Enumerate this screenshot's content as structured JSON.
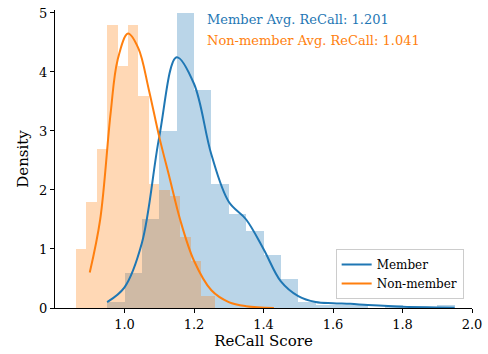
{
  "chart_data": {
    "type": "histogram",
    "x_label": "ReCall Score",
    "y_label": "Density",
    "xlim": [
      0.8,
      2.0
    ],
    "ylim": [
      0,
      5.05
    ],
    "xticks": [
      {
        "value": 1.0,
        "label": "1.0"
      },
      {
        "value": 1.2,
        "label": "1.2"
      },
      {
        "value": 1.4,
        "label": "1.4"
      },
      {
        "value": 1.6,
        "label": "1.6"
      },
      {
        "value": 1.8,
        "label": "1.8"
      },
      {
        "value": 2.0,
        "label": "2.0"
      }
    ],
    "yticks": [
      0,
      1,
      2,
      3,
      4,
      5
    ],
    "grid": false,
    "legend": "lower right",
    "annotations": [
      {
        "text": "Member Avg. ReCall: 1.201",
        "color": "#1f77b4"
      },
      {
        "text": "Non-member Avg. ReCall: 1.041",
        "color": "#ff7f0e"
      }
    ],
    "series": [
      {
        "name": "Member",
        "color": "#1f77b4",
        "type": "line",
        "bins": [
          0.95,
          1.0,
          1.05,
          1.1,
          1.15,
          1.2,
          1.25,
          1.3,
          1.35,
          1.4,
          1.45,
          1.5,
          1.55,
          1.6,
          1.65,
          1.7,
          1.75,
          1.8,
          1.85,
          1.9,
          1.95
        ],
        "counts": [
          0.1,
          0.6,
          1.5,
          3.0,
          5.0,
          3.7,
          2.1,
          1.6,
          1.3,
          0.9,
          0.5,
          0.1,
          0.05,
          0.05,
          0.05,
          0,
          0.05,
          0,
          0,
          0.05
        ],
        "x": [
          0.95,
          1.0,
          1.05,
          1.1,
          1.15,
          1.2,
          1.25,
          1.3,
          1.35,
          1.4,
          1.45,
          1.5,
          1.55,
          1.6,
          1.65,
          1.7,
          1.8,
          1.9,
          1.95
        ],
        "values": [
          0.1,
          0.35,
          1.1,
          2.9,
          4.25,
          3.8,
          2.6,
          1.8,
          1.5,
          1.0,
          0.45,
          0.2,
          0.1,
          0.08,
          0.07,
          0.05,
          0.02,
          0.01,
          0.005
        ]
      },
      {
        "name": "Non-member",
        "color": "#ff7f0e",
        "type": "line",
        "bins": [
          0.86,
          0.89,
          0.92,
          0.95,
          0.98,
          1.01,
          1.04,
          1.07,
          1.1,
          1.13,
          1.16,
          1.19,
          1.22,
          1.26
        ],
        "counts": [
          1.0,
          1.8,
          2.7,
          4.8,
          4.1,
          4.8,
          3.6,
          2.1,
          2.0,
          1.9,
          1.2,
          0.8,
          0.2
        ],
        "x": [
          0.9,
          0.93,
          0.96,
          0.98,
          1.01,
          1.04,
          1.07,
          1.1,
          1.13,
          1.16,
          1.2,
          1.25,
          1.3,
          1.35,
          1.43
        ],
        "values": [
          0.6,
          1.5,
          3.3,
          4.2,
          4.65,
          4.4,
          3.7,
          2.9,
          2.2,
          1.5,
          0.8,
          0.3,
          0.1,
          0.03,
          0.0
        ]
      }
    ]
  }
}
